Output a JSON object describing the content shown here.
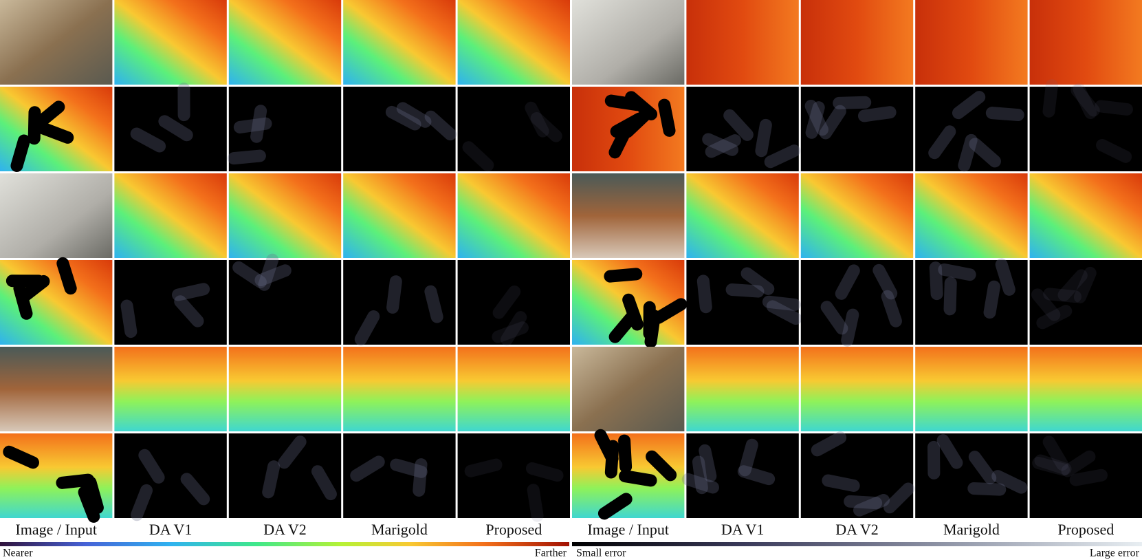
{
  "columns_left": [
    "Image / Input",
    "DA V1",
    "DA V2",
    "Marigold",
    "Proposed"
  ],
  "columns_right": [
    "Image / Input",
    "DA V1",
    "DA V2",
    "Marigold",
    "Proposed"
  ],
  "colorbars": [
    {
      "start_label": "Nearer",
      "end_label": "Farther"
    },
    {
      "start_label": "Small error",
      "end_label": "Large error"
    }
  ]
}
